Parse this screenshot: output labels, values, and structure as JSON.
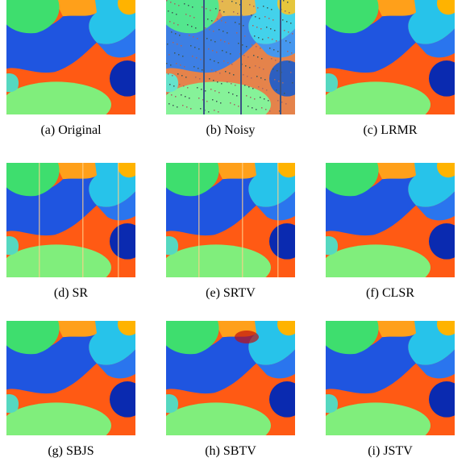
{
  "figure": {
    "panels": [
      {
        "caption": "(a) Original"
      },
      {
        "caption": "(b) Noisy"
      },
      {
        "caption": "(c) LRMR"
      },
      {
        "caption": "(d) SR"
      },
      {
        "caption": "(e) SRTV"
      },
      {
        "caption": "(f) CLSR"
      },
      {
        "caption": "(g) SBJS"
      },
      {
        "caption": "(h) SBTV"
      },
      {
        "caption": "(i) JSTV"
      }
    ]
  }
}
